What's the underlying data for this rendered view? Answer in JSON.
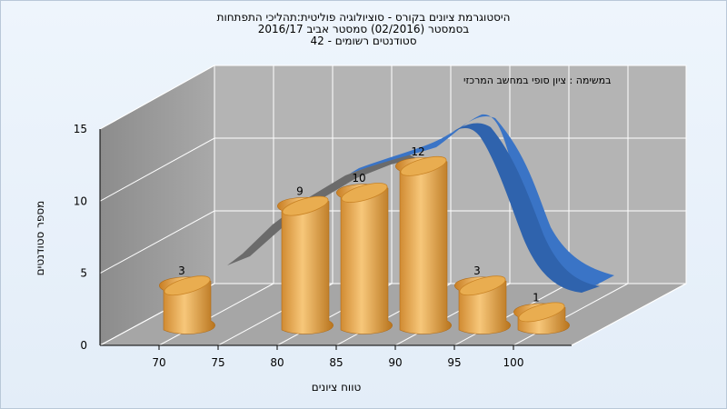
{
  "titles": {
    "line1": "היסטוגרמת ציונים בקורס - סוציולוגיה פוליטית:תהליכי התפתחות",
    "line2": "בסמסטר  (02/2016)  סמסטר אביב 2016/17",
    "line3": "סטודנטים רשומים - 42"
  },
  "chart_data": {
    "type": "bar",
    "subtitle": "במשימה : ציון סופי במחשב המרכזי",
    "xlabel": "טווח ציונים",
    "ylabel": "מספר סטודנטים",
    "x_ticks": [
      "70",
      "75",
      "80",
      "85",
      "90",
      "95",
      "100"
    ],
    "y_ticks": [
      "0",
      "5",
      "10",
      "15"
    ],
    "ylim": [
      0,
      15
    ],
    "categories": [
      "70",
      "80",
      "85",
      "90",
      "95",
      "100"
    ],
    "values": [
      3,
      9,
      10,
      12,
      3,
      1
    ],
    "bar_color": "#e8a94a",
    "curve_color": "#3a74c6",
    "curve": "normal distribution overlay (3D ribbon)",
    "grid": true
  }
}
